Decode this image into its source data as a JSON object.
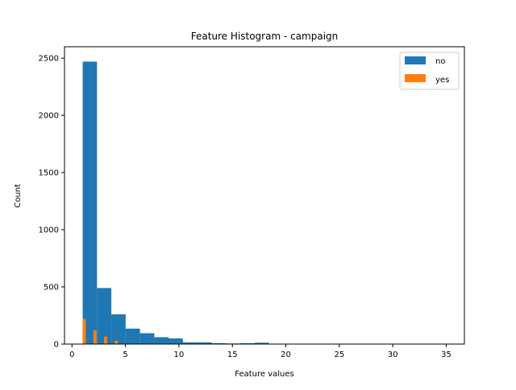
{
  "chart_data": {
    "type": "bar",
    "title": "Feature Histogram - campaign",
    "xlabel": "Feature values",
    "ylabel": "Count",
    "xlim": [
      -0.7,
      36.7
    ],
    "ylim": [
      0,
      2600
    ],
    "xticks": [
      0,
      5,
      10,
      15,
      20,
      25,
      30,
      35
    ],
    "yticks": [
      0,
      500,
      1000,
      1500,
      2000,
      2500
    ],
    "legend_position": "top-right",
    "series": [
      {
        "name": "no",
        "color": "#1f77b4",
        "bin_width": 1.34,
        "bins": [
          {
            "x0": 1.0,
            "count": 2470
          },
          {
            "x0": 2.34,
            "count": 490
          },
          {
            "x0": 3.68,
            "count": 260
          },
          {
            "x0": 5.02,
            "count": 135
          },
          {
            "x0": 6.36,
            "count": 95
          },
          {
            "x0": 7.7,
            "count": 60
          },
          {
            "x0": 9.04,
            "count": 40
          },
          {
            "x0": 9.0,
            "count": 50
          },
          {
            "x0": 10.38,
            "count": 15
          },
          {
            "x0": 11.72,
            "count": 15
          },
          {
            "x0": 13.06,
            "count": 8
          },
          {
            "x0": 14.4,
            "count": 5
          },
          {
            "x0": 15.74,
            "count": 8
          },
          {
            "x0": 17.08,
            "count": 12
          },
          {
            "x0": 18.42,
            "count": 3
          },
          {
            "x0": 19.76,
            "count": 2
          },
          {
            "x0": 21.1,
            "count": 1
          },
          {
            "x0": 22.44,
            "count": 1
          },
          {
            "x0": 23.78,
            "count": 1
          },
          {
            "x0": 25.12,
            "count": 1
          },
          {
            "x0": 29.14,
            "count": 1
          },
          {
            "x0": 31.82,
            "count": 1
          },
          {
            "x0": 33.16,
            "count": 1
          },
          {
            "x0": 34.5,
            "count": 1
          }
        ]
      },
      {
        "name": "yes",
        "color": "#ff7f0e",
        "bin_width": 0.3,
        "bins": [
          {
            "x0": 1.0,
            "count": 220
          },
          {
            "x0": 2.0,
            "count": 120
          },
          {
            "x0": 3.0,
            "count": 65
          },
          {
            "x0": 4.0,
            "count": 30
          },
          {
            "x0": 5.0,
            "count": 3
          },
          {
            "x0": 6.0,
            "count": 2
          }
        ]
      }
    ]
  }
}
